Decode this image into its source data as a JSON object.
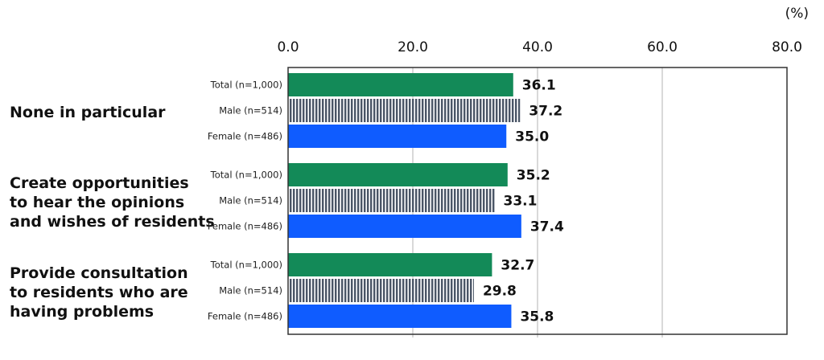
{
  "unit_label": "(%)",
  "chart_data": {
    "type": "bar",
    "orientation": "horizontal",
    "xlim": [
      0,
      80
    ],
    "ticks": [
      "0.0",
      "20.0",
      "40.0",
      "60.0",
      "80.0"
    ],
    "tick_values": [
      0,
      20,
      40,
      60,
      80
    ],
    "grid": "vertical",
    "categories": [
      [
        "None in particular"
      ],
      [
        "Create opportunities",
        "to hear the opinions",
        "and wishes of residents"
      ],
      [
        "Provide consultation",
        "to residents who are",
        "having problems"
      ]
    ],
    "series": [
      {
        "name": "Total (n=1,000)",
        "values": [
          36.1,
          35.2,
          32.7
        ],
        "value_labels": [
          "36.1",
          "35.2",
          "32.7"
        ],
        "color": "#138a58",
        "pattern": "solid"
      },
      {
        "name": "Male (n=514)",
        "values": [
          37.2,
          33.1,
          29.8
        ],
        "value_labels": [
          "37.2",
          "33.1",
          "29.8"
        ],
        "color": "#4a5566",
        "pattern": "vertical-stripes"
      },
      {
        "name": "Female (n=486)",
        "values": [
          35.0,
          37.4,
          35.8
        ],
        "value_labels": [
          "35.0",
          "37.4",
          "35.8"
        ],
        "color": "#0f5cff",
        "pattern": "solid"
      }
    ]
  }
}
